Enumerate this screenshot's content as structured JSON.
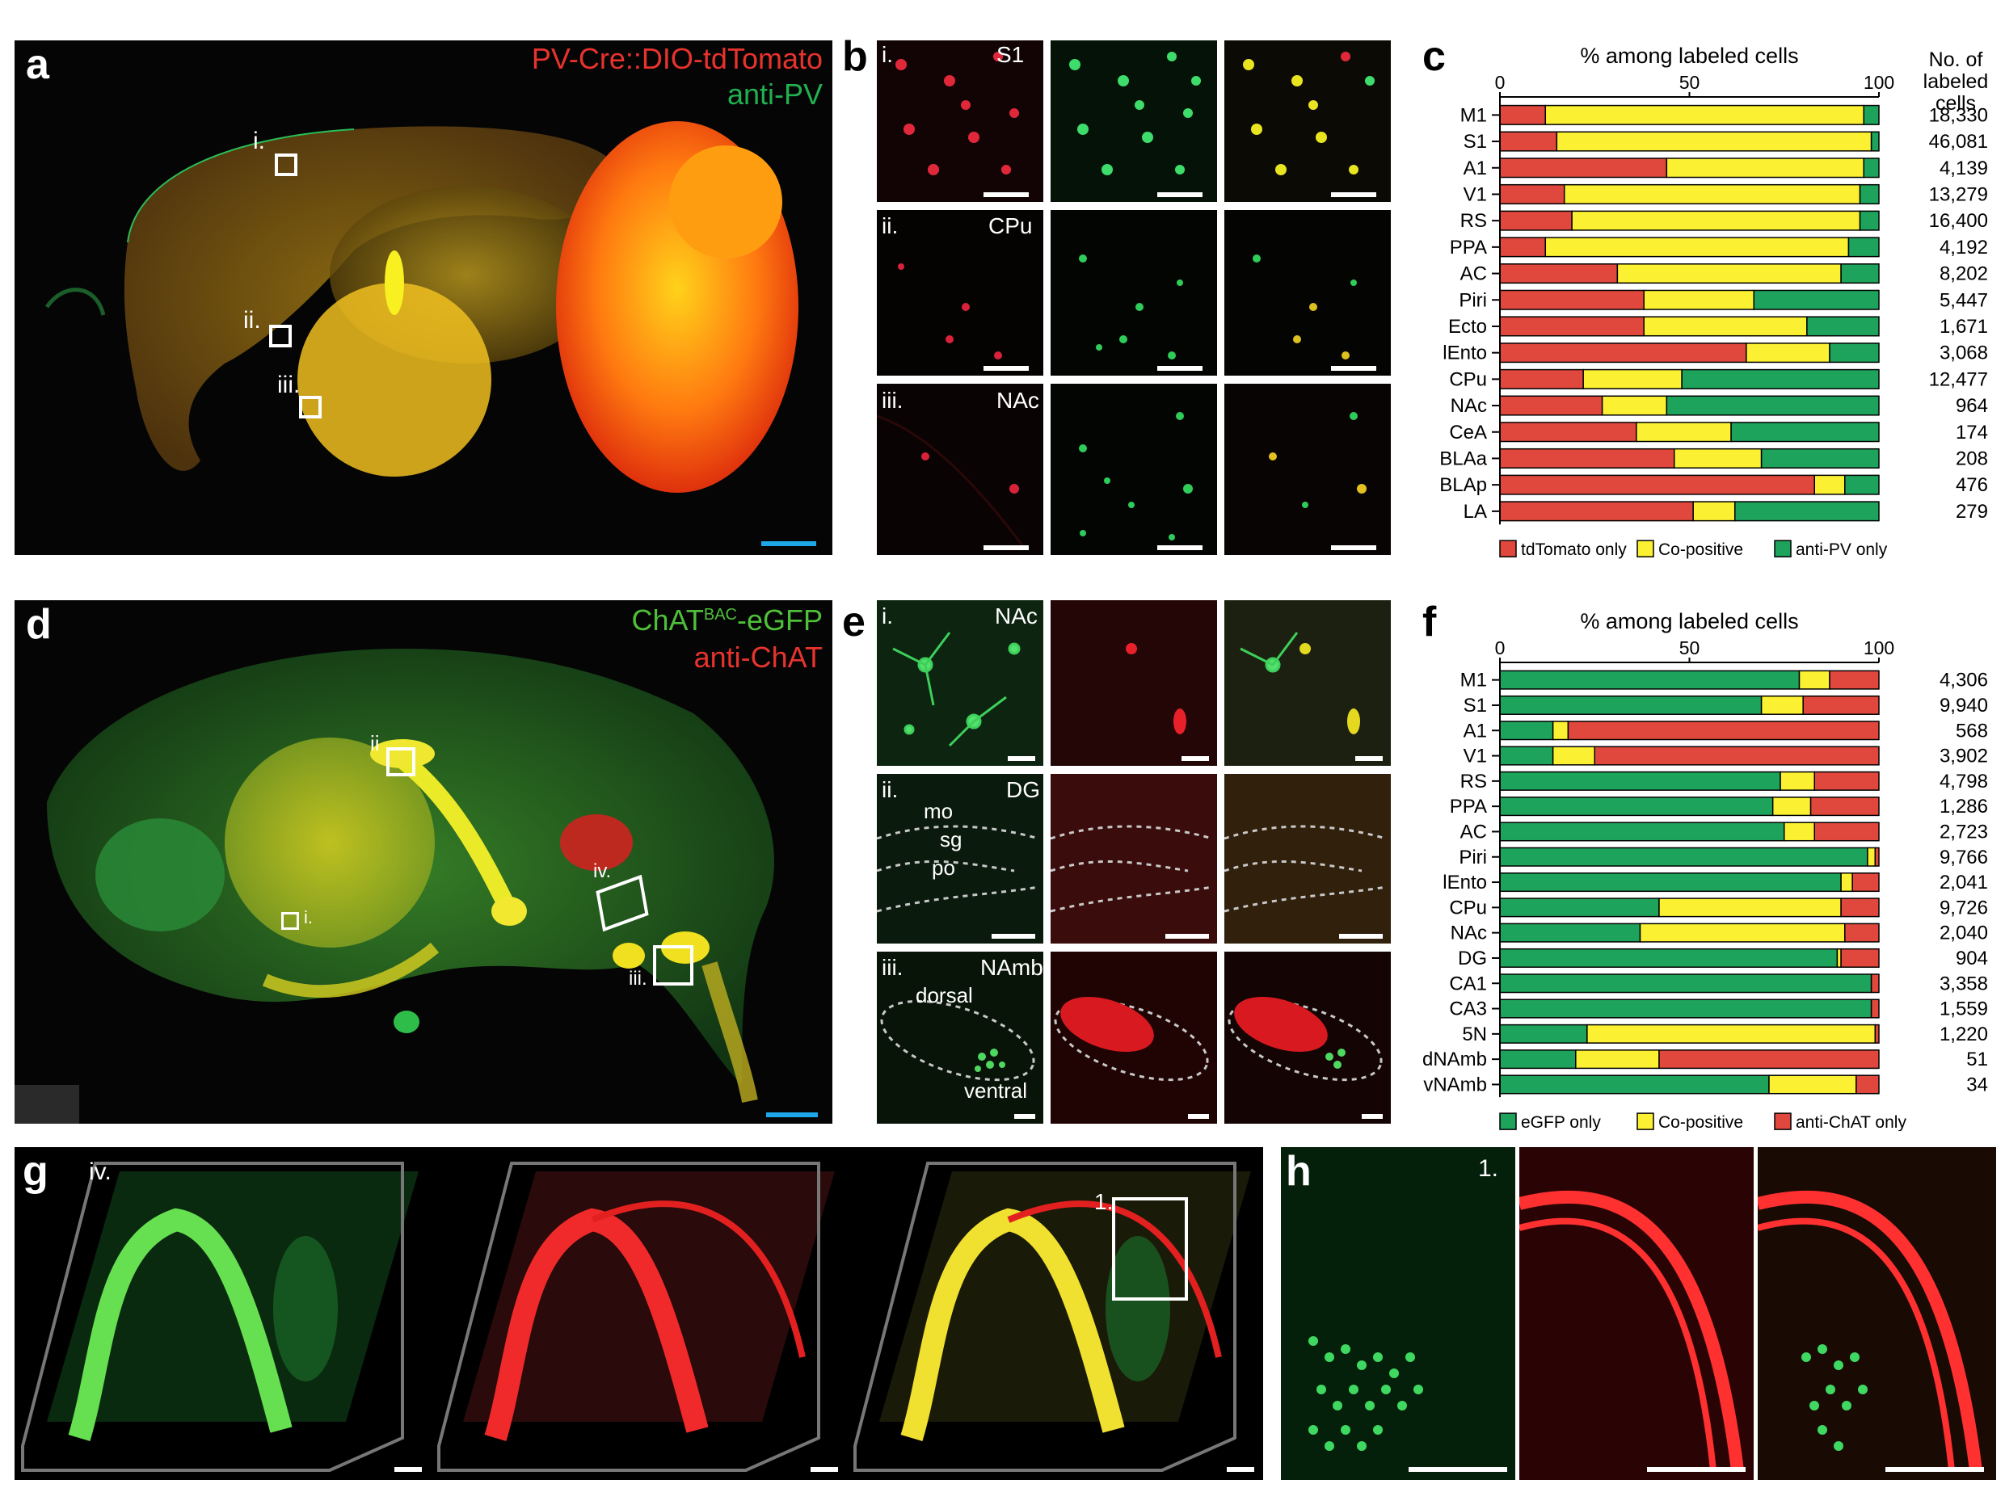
{
  "panel_a": {
    "letter": "a",
    "title1": "PV-Cre::DIO-tdTomato",
    "title2": "anti-PV",
    "title1_color": "#e8332d",
    "title2_color": "#21b050",
    "insets": [
      "i.",
      "ii.",
      "iii."
    ]
  },
  "panel_b": {
    "letter": "b",
    "rows": [
      {
        "roman": "i.",
        "region": "S1"
      },
      {
        "roman": "ii.",
        "region": "CPu"
      },
      {
        "roman": "iii.",
        "region": "NAc"
      }
    ]
  },
  "panel_d": {
    "letter": "d",
    "title1_pre": "ChAT",
    "title1_sup": "BAC",
    "title1_post": "-eGFP",
    "title2": "anti-ChAT",
    "title1_color": "#4fbf3a",
    "title2_color": "#e8332d",
    "insets": [
      "ii",
      "i.",
      "iv.",
      "iii."
    ]
  },
  "panel_e": {
    "letter": "e",
    "rows": [
      {
        "roman": "i.",
        "region": "NAc"
      },
      {
        "roman": "ii.",
        "region": "DG"
      },
      {
        "roman": "iii.",
        "region": "NAmb"
      }
    ],
    "dg_layers": [
      "mo",
      "sg",
      "po"
    ],
    "namb_labels": [
      "dorsal",
      "ventral"
    ]
  },
  "panel_g": {
    "letter": "g",
    "inset_label": "iv.",
    "box_label": "1."
  },
  "panel_h": {
    "letter": "h",
    "inset_label": "1."
  },
  "chart_data": [
    {
      "panel": "c",
      "type": "bar",
      "orientation": "horizontal",
      "stacked": true,
      "xlabel": "% among labeled cells",
      "xlim": [
        0,
        100
      ],
      "xticks": [
        "0",
        "50",
        "100"
      ],
      "count_header": [
        "No. of",
        "labeled",
        "cells"
      ],
      "categories": [
        "M1",
        "S1",
        "A1",
        "V1",
        "RS",
        "PPA",
        "AC",
        "Piri",
        "Ecto",
        "lEnto",
        "CPu",
        "NAc",
        "CeA",
        "BLAa",
        "BLAp",
        "LA"
      ],
      "counts": [
        "18,330",
        "46,081",
        "4,139",
        "13,279",
        "16,400",
        "4,192",
        "8,202",
        "5,447",
        "1,671",
        "3,068",
        "12,477",
        "964",
        "174",
        "208",
        "476",
        "279"
      ],
      "series": [
        {
          "name": "tdTomato only",
          "color": "#e0483d",
          "values": [
            12,
            15,
            44,
            17,
            19,
            12,
            31,
            38,
            38,
            65,
            22,
            27,
            36,
            46,
            83,
            51
          ]
        },
        {
          "name": "Co-positive",
          "color": "#fbf132",
          "values": [
            84,
            83,
            52,
            78,
            76,
            80,
            59,
            29,
            43,
            22,
            26,
            17,
            25,
            23,
            8,
            11
          ]
        },
        {
          "name": "anti-PV only",
          "color": "#1ea35c",
          "values": [
            4,
            2,
            4,
            5,
            5,
            8,
            10,
            33,
            19,
            13,
            52,
            56,
            39,
            31,
            9,
            38
          ]
        }
      ],
      "legend_position": "bottom"
    },
    {
      "panel": "f",
      "type": "bar",
      "orientation": "horizontal",
      "stacked": true,
      "xlabel": "% among labeled cells",
      "xlim": [
        0,
        100
      ],
      "xticks": [
        "0",
        "50",
        "100"
      ],
      "categories": [
        "M1",
        "S1",
        "A1",
        "V1",
        "RS",
        "PPA",
        "AC",
        "Piri",
        "lEnto",
        "CPu",
        "NAc",
        "DG",
        "CA1",
        "CA3",
        "5N",
        "dNAmb",
        "vNAmb"
      ],
      "counts": [
        "4,306",
        "9,940",
        "568",
        "3,902",
        "4,798",
        "1,286",
        "2,723",
        "9,766",
        "2,041",
        "9,726",
        "2,040",
        "904",
        "3,358",
        "1,559",
        "1,220",
        "51",
        "34"
      ],
      "series": [
        {
          "name": "eGFP only",
          "color": "#1ea35c",
          "values": [
            79,
            69,
            14,
            14,
            74,
            72,
            75,
            97,
            90,
            42,
            37,
            89,
            98,
            98,
            23,
            20,
            71
          ]
        },
        {
          "name": "Co-positive",
          "color": "#fbf132",
          "values": [
            8,
            11,
            4,
            11,
            9,
            10,
            8,
            2,
            3,
            48,
            54,
            1,
            0,
            0,
            76,
            22,
            23
          ]
        },
        {
          "name": "anti-ChAT only",
          "color": "#e0483d",
          "values": [
            13,
            20,
            82,
            75,
            17,
            18,
            17,
            1,
            7,
            10,
            9,
            10,
            2,
            2,
            1,
            58,
            6
          ]
        }
      ],
      "legend_position": "bottom"
    }
  ]
}
